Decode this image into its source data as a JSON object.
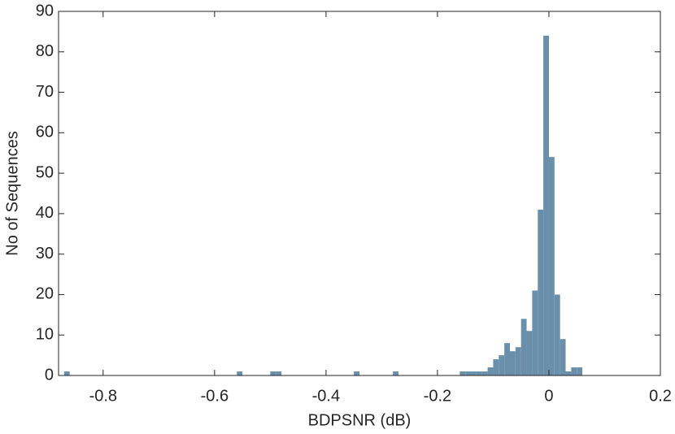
{
  "chart_data": {
    "type": "histogram",
    "x_label": "BDPSNR (dB)",
    "y_label": "No of Sequences",
    "color": "#6a8fab",
    "bins": [
      -0.88,
      -0.87,
      -0.86,
      -0.85,
      -0.84,
      -0.83,
      -0.82,
      -0.81,
      -0.8,
      -0.79,
      -0.78,
      -0.77,
      -0.76,
      -0.75,
      -0.74,
      -0.73,
      -0.72,
      -0.71,
      -0.7,
      -0.69,
      -0.68,
      -0.67,
      -0.66,
      -0.65,
      -0.64,
      -0.63,
      -0.62,
      -0.61,
      -0.6,
      -0.59,
      -0.58,
      -0.57,
      -0.56,
      -0.55,
      -0.54,
      -0.53,
      -0.52,
      -0.51,
      -0.5,
      -0.49,
      -0.48,
      -0.47,
      -0.46,
      -0.45,
      -0.44,
      -0.43,
      -0.42,
      -0.41,
      -0.4,
      -0.39,
      -0.38,
      -0.37,
      -0.36,
      -0.35,
      -0.34,
      -0.33,
      -0.32,
      -0.31,
      -0.3,
      -0.29,
      -0.28,
      -0.27,
      -0.26,
      -0.25,
      -0.24,
      -0.23,
      -0.22,
      -0.21,
      -0.2,
      -0.19,
      -0.18,
      -0.17,
      -0.16,
      -0.15,
      -0.14,
      -0.13,
      -0.12,
      -0.11,
      -0.1,
      -0.09,
      -0.08,
      -0.07,
      -0.06,
      -0.05,
      -0.04,
      -0.03,
      -0.02,
      -0.01,
      0,
      0.01,
      0.02,
      0.03,
      0.04,
      0.05,
      0.06
    ],
    "counts": [
      0,
      1,
      0,
      0,
      0,
      0,
      0,
      0,
      0,
      0,
      0,
      0,
      0,
      0,
      0,
      0,
      0,
      0,
      0,
      0,
      0,
      0,
      0,
      0,
      0,
      0,
      0,
      0,
      0,
      0,
      0,
      0,
      1,
      0,
      0,
      0,
      0,
      0,
      1,
      1,
      0,
      0,
      0,
      0,
      0,
      0,
      0,
      0,
      0,
      0,
      0,
      0,
      0,
      1,
      0,
      0,
      0,
      0,
      0,
      0,
      1,
      0,
      0,
      0,
      0,
      0,
      0,
      0,
      0,
      0,
      0,
      0,
      1,
      1,
      1,
      1,
      1,
      2,
      4,
      5,
      8,
      6,
      7,
      14,
      11,
      21,
      41,
      84,
      54,
      20,
      9,
      1,
      2,
      2
    ],
    "xlim": [
      -0.88,
      0.2
    ],
    "xticks": [
      -0.8,
      -0.6,
      -0.4,
      -0.2,
      0,
      0.2
    ],
    "ylim": [
      0,
      90
    ],
    "yticks": [
      0,
      10,
      20,
      30,
      40,
      50,
      60,
      70,
      80,
      90
    ]
  }
}
